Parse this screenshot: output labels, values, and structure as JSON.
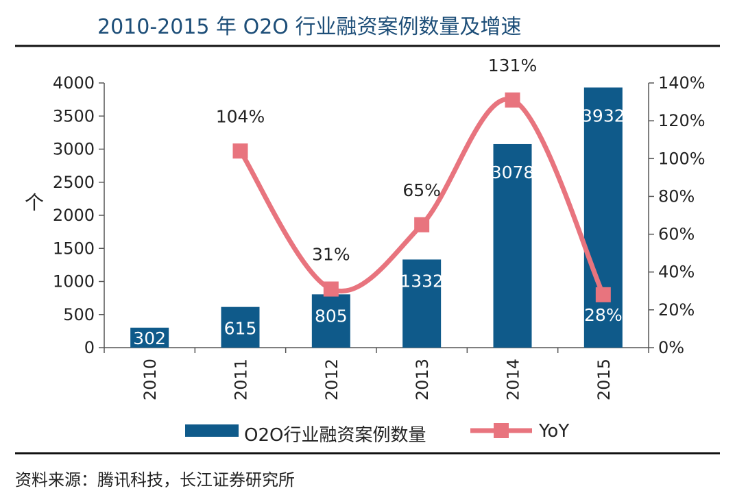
{
  "title": "2010-2015 年 O2O 行业融资案例数量及增速",
  "source": "资料来源：腾讯科技，长江证券研究所",
  "y_unit_glyph": "个",
  "legend": {
    "bar_label": "O2O行业融资案例数量",
    "line_label": "YoY"
  },
  "colors": {
    "bar": "#0f5a8a",
    "line": "#e8747e",
    "axis": "#555555",
    "text": "#222222",
    "title": "#1d4e78"
  },
  "chart_data": {
    "type": "bar",
    "categories": [
      "2010",
      "2011",
      "2012",
      "2013",
      "2014",
      "2015"
    ],
    "series": [
      {
        "name": "O2O行业融资案例数量",
        "type": "bar",
        "axis": "left",
        "values": [
          302,
          615,
          805,
          1332,
          3078,
          3932
        ],
        "labels": [
          "302",
          "615",
          "805",
          "1332",
          "3078",
          "3932"
        ]
      },
      {
        "name": "YoY",
        "type": "line",
        "axis": "right",
        "values": [
          null,
          104,
          31,
          65,
          131,
          28
        ],
        "labels": [
          "",
          "104%",
          "31%",
          "65%",
          "131%",
          "28%"
        ]
      }
    ],
    "y_left": {
      "min": 0,
      "max": 4000,
      "ticks": [
        "0",
        "500",
        "1000",
        "1500",
        "2000",
        "2500",
        "3000",
        "3500",
        "4000"
      ]
    },
    "y_right": {
      "min": 0,
      "max": 140,
      "ticks": [
        "0%",
        "20%",
        "40%",
        "60%",
        "80%",
        "100%",
        "120%",
        "140%"
      ]
    },
    "grid": false,
    "legend_position": "bottom"
  }
}
